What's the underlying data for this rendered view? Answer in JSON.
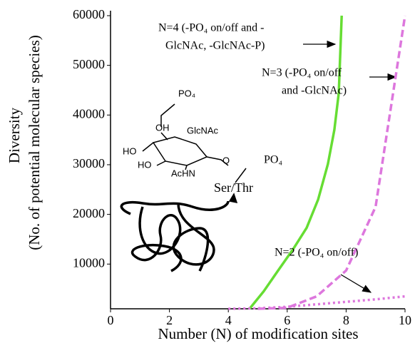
{
  "chart_data": {
    "type": "line",
    "x_label": "Number (N) of modification sites",
    "y_label": [
      "Diversity",
      "(No. of potential molecular species)"
    ],
    "xlim": [
      0,
      10
    ],
    "xticks": [
      0,
      2,
      4,
      6,
      8,
      10
    ],
    "ylim": [
      1000,
      61000
    ],
    "yticks": [
      10000,
      20000,
      30000,
      40000,
      50000,
      60000
    ],
    "series": [
      {
        "color": "#66dd33",
        "style": "solid",
        "x": [
          4.72,
          5.2,
          5.69,
          6.2,
          6.66,
          7.05,
          7.38,
          7.6,
          7.75,
          7.85
        ],
        "values": [
          1000,
          4500,
          8700,
          13000,
          17300,
          23000,
          30100,
          37000,
          44400,
          60000
        ],
        "label": [
          "N=4 (-PO₄ on/off and -",
          "GlcNAc, -GlcNAc-P)"
        ]
      },
      {
        "color": "#dd77dd",
        "style": "dashed",
        "x": [
          5,
          6,
          7,
          8,
          9,
          10
        ],
        "values": [
          1000,
          1200,
          3500,
          8700,
          21500,
          60000
        ],
        "label": [
          "N=3 (-PO₄ on/off",
          "and -GlcNAc)"
        ]
      },
      {
        "color": "#dd77dd",
        "style": "dotted",
        "x": [
          4,
          5,
          6,
          7,
          8,
          9,
          10
        ],
        "values": [
          1000,
          1100,
          1400,
          1900,
          2400,
          2900,
          3500
        ],
        "label": [
          "N=2 (-PO₄ on/off)"
        ]
      }
    ],
    "illustration_labels": [
      "PO₄",
      "OH",
      "GlcNAc",
      "HO",
      "HO",
      "AcHN",
      "O",
      "Ser/Thr",
      "PO₄"
    ]
  }
}
